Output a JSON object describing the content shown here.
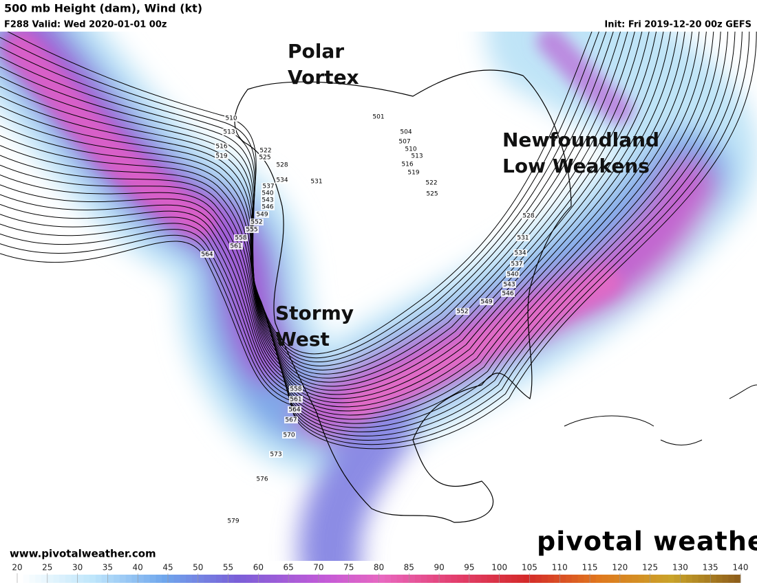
{
  "header": {
    "title": "500 mb Height (dam), Wind (kt)",
    "valid": "F288 Valid: Wed 2020-01-01 00z",
    "init": "Init: Fri 2019-12-20 00z GEFS"
  },
  "annotations": {
    "polar_vortex": [
      "Polar",
      "Vortex"
    ],
    "newfoundland": [
      "Newfoundland",
      "Low Weakens"
    ],
    "stormy_west": [
      "Stormy",
      "West"
    ]
  },
  "contour_labels": [
    510,
    513,
    516,
    519,
    522,
    525,
    528,
    531,
    534,
    537,
    540,
    543,
    546,
    549,
    552,
    555,
    558,
    561,
    564,
    501,
    504,
    507,
    510,
    513,
    516,
    519,
    522,
    525,
    528,
    531,
    534,
    537,
    540,
    543,
    546,
    549,
    552,
    558,
    561,
    564,
    567,
    570,
    573,
    576,
    579
  ],
  "colorbar_ticks": [
    20,
    25,
    30,
    35,
    40,
    45,
    50,
    55,
    60,
    65,
    70,
    75,
    80,
    85,
    90,
    95,
    100,
    105,
    110,
    115,
    120,
    125,
    130,
    135,
    140
  ],
  "footer": {
    "url": "www.pivotalweather.com",
    "logo": "pivotal weather"
  }
}
